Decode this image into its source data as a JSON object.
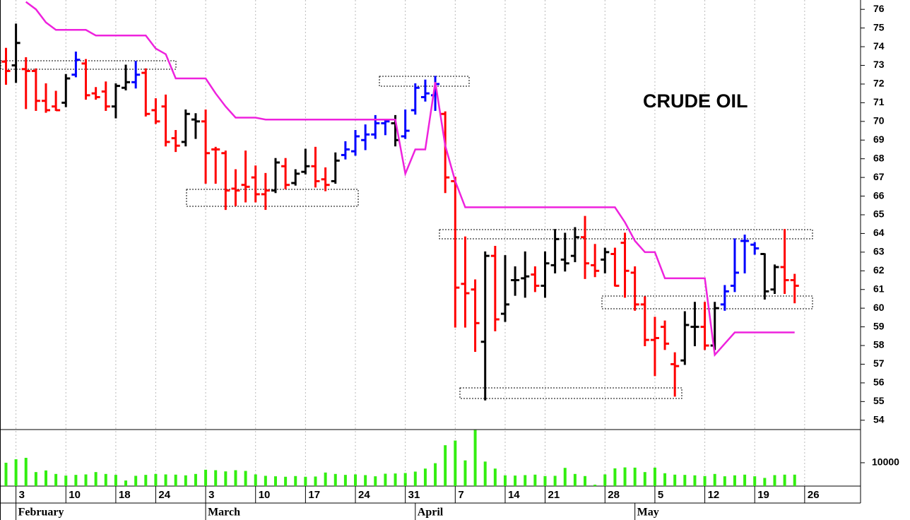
{
  "chart_data": {
    "type": "ohlc",
    "title": "CRUDE OIL",
    "xlim": [
      -0.6,
      85.6
    ],
    "xticks": [
      {
        "value": 1,
        "label": "3"
      },
      {
        "value": 6,
        "label": "10"
      },
      {
        "value": 11,
        "label": "18"
      },
      {
        "value": 15,
        "label": "24"
      },
      {
        "value": 20,
        "label": "3"
      },
      {
        "value": 25,
        "label": "10"
      },
      {
        "value": 30,
        "label": "17"
      },
      {
        "value": 35,
        "label": "24"
      },
      {
        "value": 40,
        "label": "31"
      },
      {
        "value": 45,
        "label": "7"
      },
      {
        "value": 50,
        "label": "14"
      },
      {
        "value": 54,
        "label": "21"
      },
      {
        "value": 60,
        "label": "28"
      },
      {
        "value": 65,
        "label": "5"
      },
      {
        "value": 70,
        "label": "12"
      },
      {
        "value": 75,
        "label": "19"
      },
      {
        "value": 80,
        "label": "26"
      }
    ],
    "month_ticks": [
      {
        "value": 1,
        "label": "February"
      },
      {
        "value": 20,
        "label": "March"
      },
      {
        "value": 41,
        "label": "April"
      },
      {
        "value": 63,
        "label": "May"
      }
    ],
    "ylim": [
      53.5,
      76.5
    ],
    "yticks": [
      54,
      55,
      56,
      57,
      58,
      59,
      60,
      61,
      62,
      63,
      64,
      65,
      66,
      67,
      68,
      69,
      70,
      71,
      72,
      73,
      74,
      75,
      76
    ],
    "grid": true,
    "bars": {
      "open": [
        73.2,
        73.0,
        72.8,
        72.7,
        71.1,
        70.8,
        71.0,
        72.5,
        73.1,
        71.5,
        71.6,
        70.8,
        71.8,
        72.1,
        72.6,
        70.6,
        70.8,
        69.1,
        68.9,
        70.1,
        70.0,
        68.5,
        68.3,
        66.4,
        66.6,
        67.0,
        66.1,
        66.3,
        67.6,
        66.7,
        67.3,
        67.6,
        66.9,
        66.8,
        68.2,
        68.4,
        69.0,
        69.3,
        69.9,
        69.9,
        69.2,
        70.6,
        71.3,
        71.4,
        70.4,
        66.8,
        61.3,
        61.0,
        58.2,
        62.8,
        59.7,
        61.5,
        61.6,
        61.8,
        61.2,
        62.3,
        62.6,
        62.8,
        63.8,
        62.3,
        62.6,
        62.9,
        63.5,
        61.9,
        60.2,
        58.3,
        59.0,
        57.0,
        57.2,
        59.0,
        59.0,
        58.0,
        60.2,
        61.2,
        63.6,
        63.4,
        62.9,
        61.0,
        62.2,
        61.5
      ],
      "high": [
        73.9,
        75.2,
        73.4,
        72.8,
        72.0,
        71.6,
        72.5,
        73.7,
        73.3,
        71.8,
        72.1,
        72.0,
        73.0,
        73.2,
        72.8,
        71.2,
        71.4,
        69.5,
        70.6,
        70.4,
        70.6,
        68.6,
        68.4,
        67.4,
        68.4,
        67.6,
        67.2,
        68.0,
        68.0,
        67.4,
        68.5,
        68.6,
        67.5,
        68.3,
        68.9,
        69.5,
        69.8,
        70.3,
        70.1,
        70.3,
        70.6,
        72.0,
        72.2,
        72.4,
        70.5,
        67.0,
        63.8,
        61.5,
        63.0,
        63.3,
        62.8,
        62.2,
        63.0,
        62.2,
        63.0,
        64.2,
        64.0,
        64.3,
        64.9,
        63.4,
        63.2,
        63.2,
        64.0,
        62.2,
        60.6,
        59.5,
        59.3,
        57.6,
        59.8,
        60.3,
        60.3,
        60.3,
        61.2,
        63.7,
        63.9,
        63.5,
        62.9,
        62.3,
        64.2,
        61.8
      ],
      "low": [
        72.0,
        72.1,
        70.7,
        70.6,
        70.5,
        70.6,
        70.8,
        72.4,
        71.2,
        71.2,
        70.6,
        70.2,
        71.7,
        71.8,
        70.3,
        69.9,
        68.7,
        68.4,
        68.7,
        69.1,
        66.7,
        66.7,
        65.3,
        65.5,
        65.7,
        65.7,
        65.3,
        66.2,
        66.4,
        66.6,
        67.2,
        66.5,
        66.3,
        66.7,
        68.0,
        68.2,
        68.5,
        69.1,
        69.3,
        68.7,
        69.1,
        70.4,
        71.1,
        70.6,
        66.2,
        59.0,
        59.0,
        57.7,
        55.1,
        58.8,
        59.3,
        60.7,
        60.6,
        60.9,
        60.6,
        61.9,
        62.0,
        62.5,
        61.6,
        61.7,
        61.9,
        61.2,
        60.6,
        59.9,
        58.0,
        56.4,
        57.8,
        55.3,
        57.0,
        58.0,
        57.8,
        57.8,
        59.9,
        60.9,
        61.9,
        62.9,
        60.5,
        60.8,
        60.8,
        60.3
      ],
      "close": [
        72.7,
        74.2,
        72.7,
        71.1,
        70.6,
        70.6,
        72.3,
        73.3,
        71.4,
        71.3,
        70.8,
        71.9,
        72.1,
        72.5,
        70.4,
        70.0,
        68.9,
        68.7,
        70.4,
        70.0,
        68.3,
        68.5,
        66.3,
        66.3,
        66.5,
        66.1,
        66.3,
        67.8,
        66.6,
        67.2,
        67.6,
        66.8,
        66.6,
        67.9,
        68.5,
        69.2,
        69.3,
        69.9,
        70.0,
        69.0,
        69.5,
        71.8,
        71.5,
        72.0,
        67.0,
        61.1,
        60.8,
        59.2,
        62.8,
        59.4,
        60.2,
        61.5,
        61.7,
        61.2,
        62.4,
        63.7,
        62.4,
        63.8,
        62.4,
        62.0,
        63.0,
        61.2,
        62.0,
        60.2,
        58.3,
        58.4,
        58.1,
        56.9,
        59.1,
        59.0,
        58.0,
        60.0,
        60.9,
        61.9,
        63.6,
        63.2,
        60.9,
        62.2,
        61.5,
        61.2
      ],
      "colors": [
        "red",
        "black",
        "red",
        "red",
        "red",
        "red",
        "black",
        "blue",
        "red",
        "red",
        "red",
        "black",
        "black",
        "blue",
        "red",
        "red",
        "red",
        "red",
        "black",
        "black",
        "red",
        "red",
        "red",
        "red",
        "red",
        "red",
        "red",
        "black",
        "red",
        "black",
        "black",
        "red",
        "red",
        "black",
        "blue",
        "blue",
        "blue",
        "blue",
        "blue",
        "black",
        "blue",
        "blue",
        "blue",
        "blue",
        "red",
        "red",
        "red",
        "red",
        "black",
        "red",
        "black",
        "black",
        "black",
        "red",
        "black",
        "black",
        "black",
        "black",
        "red",
        "red",
        "black",
        "red",
        "red",
        "red",
        "red",
        "red",
        "red",
        "red",
        "black",
        "black",
        "red",
        "black",
        "blue",
        "blue",
        "blue",
        "blue",
        "black",
        "black",
        "red",
        "red"
      ]
    },
    "stop_line": {
      "color": "#ee22dd",
      "values": [
        null,
        null,
        76.4,
        76.0,
        75.3,
        74.9,
        74.9,
        74.9,
        74.9,
        74.6,
        74.6,
        74.6,
        74.6,
        74.6,
        74.6,
        73.9,
        73.6,
        72.3,
        72.3,
        72.3,
        72.3,
        71.5,
        70.8,
        70.2,
        70.2,
        70.2,
        70.1,
        70.1,
        70.1,
        70.1,
        70.1,
        70.1,
        70.1,
        70.1,
        70.1,
        70.1,
        70.1,
        70.1,
        70.1,
        70.1,
        67.2,
        68.5,
        68.5,
        72.1,
        68.7,
        66.8,
        65.4,
        65.4,
        65.4,
        65.4,
        65.4,
        65.4,
        65.4,
        65.4,
        65.4,
        65.4,
        65.4,
        65.4,
        65.4,
        65.4,
        65.4,
        65.4,
        64.6,
        63.6,
        63.0,
        63.0,
        61.6,
        61.6,
        61.6,
        61.6,
        61.6,
        57.5,
        58.1,
        58.7,
        58.7,
        58.7,
        58.7,
        58.7,
        58.7,
        58.7
      ]
    },
    "volume": {
      "color": "#33ee11",
      "ylim": [
        0,
        24200
      ],
      "yticks": [
        10000
      ],
      "values": [
        10000,
        11500,
        12100,
        6000,
        6700,
        5200,
        4500,
        4800,
        5000,
        6000,
        5200,
        4800,
        2400,
        4400,
        4800,
        5200,
        5000,
        4900,
        4600,
        5200,
        7000,
        6800,
        6300,
        6800,
        6500,
        5000,
        4400,
        4200,
        4000,
        4300,
        4000,
        4100,
        5800,
        5200,
        4800,
        5000,
        4700,
        4200,
        5300,
        5400,
        5600,
        6200,
        7500,
        9800,
        17500,
        19500,
        11000,
        24000,
        10500,
        7500,
        4600,
        4500,
        4700,
        4900,
        4300,
        4400,
        7800,
        5200,
        4300,
        600,
        5000,
        7600,
        8000,
        7900,
        6000,
        7900,
        5500,
        4900,
        4800,
        4600,
        4300,
        5200,
        4200,
        4600,
        4900,
        4200,
        3500,
        4700,
        4900,
        4900
      ]
    }
  }
}
